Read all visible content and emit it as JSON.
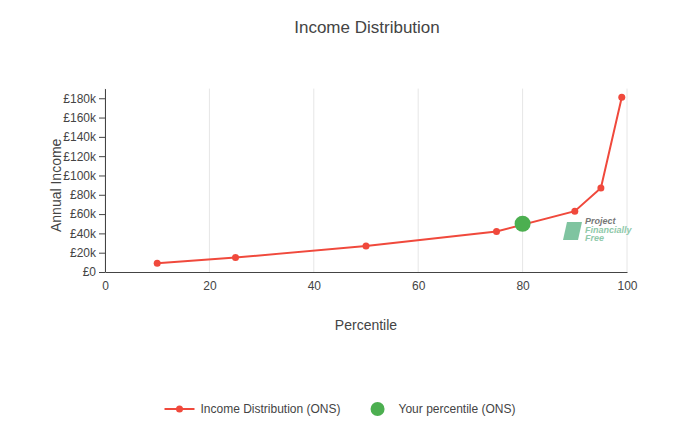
{
  "chart_data": {
    "type": "line",
    "title": "Income Distribution",
    "x_label": "Percentile",
    "y_label": "Annual Income",
    "xlim": [
      0,
      100
    ],
    "xticks": [
      0,
      20,
      40,
      60,
      80,
      100
    ],
    "ylim": [
      0,
      190000
    ],
    "yticks": [
      {
        "value": 0,
        "label": "£0"
      },
      {
        "value": 20000,
        "label": "£20k"
      },
      {
        "value": 40000,
        "label": "£40k"
      },
      {
        "value": 60000,
        "label": "£60k"
      },
      {
        "value": 80000,
        "label": "£80k"
      },
      {
        "value": 100000,
        "label": "£100k"
      },
      {
        "value": 120000,
        "label": "£120k"
      },
      {
        "value": 140000,
        "label": "£140k"
      },
      {
        "value": 160000,
        "label": "£160k"
      },
      {
        "value": 180000,
        "label": "£180k"
      }
    ],
    "grid": "x",
    "legend": "bottom",
    "watermark": [
      "Project",
      "Financially",
      "Free"
    ],
    "series": [
      {
        "name": "Income Distribution (ONS)",
        "type": "line",
        "color": "#f0493c",
        "marker": "circle",
        "x": [
          10,
          25,
          50,
          75,
          90,
          95,
          99
        ],
        "values": [
          9000,
          15000,
          27000,
          42000,
          63000,
          87000,
          181000
        ]
      },
      {
        "name": "Your percentile (ONS)",
        "type": "scatter",
        "color": "#4caf50",
        "marker": "circle",
        "x": [
          80
        ],
        "values": [
          50000
        ]
      }
    ]
  }
}
